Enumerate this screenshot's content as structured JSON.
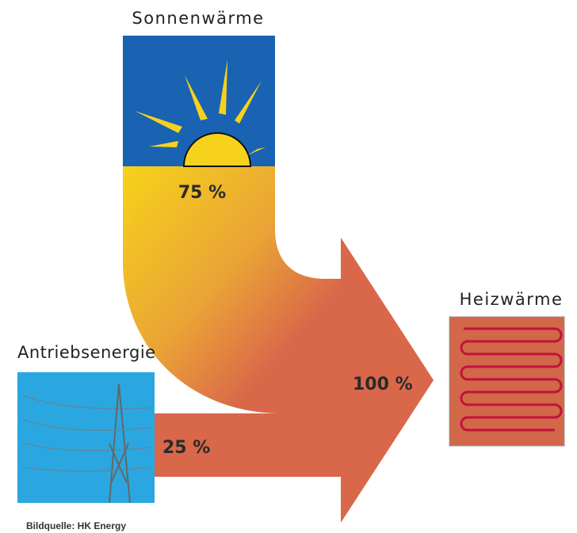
{
  "nodes": [
    {
      "label": "Sonnenwärme",
      "share": "75 %"
    },
    {
      "label": "Antriebsenergie",
      "share": "25 %"
    },
    {
      "label": "Heizwärme",
      "share": "100 %"
    }
  ],
  "source": "Bildquelle: HK Energy"
}
